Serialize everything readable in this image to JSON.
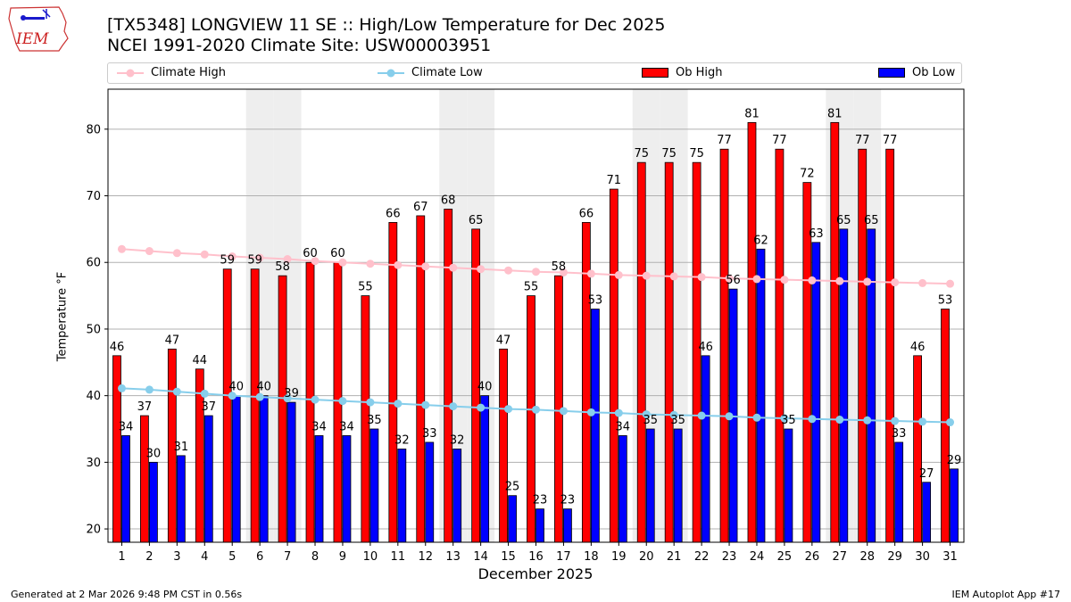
{
  "header": {
    "title_line1": "[TX5348] LONGVIEW 11 SE :: High/Low Temperature for Dec 2025",
    "title_line2": "NCEI 1991-2020 Climate Site: USW00003951",
    "logo_text": "IEM"
  },
  "legend": {
    "climate_high": "Climate High",
    "climate_low": "Climate Low",
    "ob_high": "Ob High",
    "ob_low": "Ob Low"
  },
  "footer": {
    "generated": "Generated at 2 Mar 2026 9:48 PM CST in 0.56s",
    "app": "IEM Autoplot App #17"
  },
  "colors": {
    "ob_high": "#ff0000",
    "ob_low": "#0000ff",
    "climate_high": "#ffc0cb",
    "climate_low": "#87ceeb",
    "weekend_shade": "#eeeeee"
  },
  "chart_data": {
    "type": "bar",
    "xlabel": "December 2025",
    "ylabel": "Temperature °F",
    "ylim": [
      18,
      86
    ],
    "yticks": [
      20,
      30,
      40,
      50,
      60,
      70,
      80
    ],
    "grid": "horizontal",
    "categories": [
      1,
      2,
      3,
      4,
      5,
      6,
      7,
      8,
      9,
      10,
      11,
      12,
      13,
      14,
      15,
      16,
      17,
      18,
      19,
      20,
      21,
      22,
      23,
      24,
      25,
      26,
      27,
      28,
      29,
      30,
      31
    ],
    "shaded_days": [
      6,
      7,
      13,
      14,
      20,
      21,
      27,
      28
    ],
    "series": [
      {
        "name": "Ob High",
        "kind": "bar",
        "values": [
          46,
          37,
          47,
          44,
          59,
          59,
          58,
          60,
          60,
          55,
          66,
          67,
          68,
          65,
          47,
          55,
          58,
          66,
          71,
          75,
          75,
          75,
          77,
          81,
          77,
          72,
          81,
          77,
          77,
          46,
          53
        ]
      },
      {
        "name": "Ob Low",
        "kind": "bar",
        "values": [
          34,
          30,
          31,
          37,
          40,
          40,
          39,
          34,
          34,
          35,
          32,
          33,
          32,
          40,
          25,
          23,
          23,
          53,
          34,
          35,
          35,
          46,
          56,
          62,
          35,
          63,
          65,
          65,
          33,
          27,
          29
        ]
      },
      {
        "name": "Climate High",
        "kind": "line",
        "values": [
          62.0,
          61.7,
          61.4,
          61.2,
          60.9,
          60.7,
          60.5,
          60.2,
          60.0,
          59.8,
          59.6,
          59.4,
          59.2,
          59.0,
          58.8,
          58.6,
          58.5,
          58.3,
          58.1,
          58.0,
          57.9,
          57.8,
          57.6,
          57.5,
          57.4,
          57.3,
          57.2,
          57.1,
          57.0,
          56.9,
          56.8
        ]
      },
      {
        "name": "Climate Low",
        "kind": "line",
        "values": [
          41.1,
          40.9,
          40.6,
          40.3,
          40.0,
          39.8,
          39.6,
          39.4,
          39.2,
          39.0,
          38.8,
          38.6,
          38.4,
          38.2,
          38.0,
          37.9,
          37.7,
          37.5,
          37.4,
          37.2,
          37.1,
          37.0,
          36.9,
          36.7,
          36.6,
          36.5,
          36.4,
          36.3,
          36.2,
          36.1,
          36.0
        ]
      }
    ]
  }
}
